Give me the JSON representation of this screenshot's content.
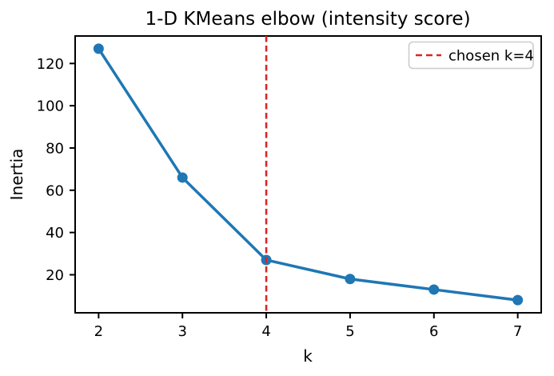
{
  "chart_data": {
    "type": "line",
    "title": "1-D KMeans elbow (intensity score)",
    "xlabel": "k",
    "ylabel": "Inertia",
    "x": [
      2,
      3,
      4,
      5,
      6,
      7
    ],
    "series": [
      {
        "name": "inertia",
        "values": [
          127,
          66,
          27,
          18,
          13,
          8
        ]
      }
    ],
    "xticks": [
      "2",
      "3",
      "4",
      "5",
      "6",
      "7"
    ],
    "xtick_values": [
      2,
      3,
      4,
      5,
      6,
      7
    ],
    "yticks": [
      "20",
      "40",
      "60",
      "80",
      "100",
      "120"
    ],
    "ytick_values": [
      20,
      40,
      60,
      80,
      100,
      120
    ],
    "xlim": [
      1.72,
      7.28
    ],
    "ylim": [
      2,
      133
    ],
    "grid": false,
    "vline": {
      "x": 4,
      "style": "dashed"
    },
    "legend": {
      "position": "upper-right",
      "entries": [
        {
          "label": "chosen k=4",
          "style": "dashed"
        }
      ]
    },
    "colors": {
      "line": "#1f77b4",
      "marker": "#1f77b4",
      "vline": "#d62728",
      "spine": "#000000",
      "legend_border": "#cccccc",
      "background": "#ffffff"
    }
  }
}
